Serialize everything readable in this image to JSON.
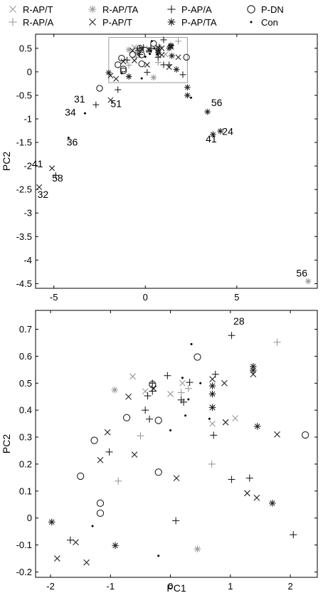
{
  "legend": [
    {
      "label": "R-AP/T",
      "marker": "x",
      "color": "#9a9a9a"
    },
    {
      "label": "R-AP/TA",
      "marker": "asterisk",
      "color": "#9a9a9a"
    },
    {
      "label": "P-AP/A",
      "marker": "plus",
      "color": "#222222"
    },
    {
      "label": "P-DN",
      "marker": "circle",
      "color": "#222222"
    },
    {
      "label": "R-AP/A",
      "marker": "plus",
      "color": "#9a9a9a"
    },
    {
      "label": "P-AP/T",
      "marker": "x",
      "color": "#222222"
    },
    {
      "label": "P-AP/TA",
      "marker": "asterisk",
      "color": "#222222"
    },
    {
      "label": "Con",
      "marker": "dot",
      "color": "#000000"
    }
  ],
  "chart_data": [
    {
      "type": "scatter",
      "xlabel": "",
      "ylabel": "PC2",
      "xlim": [
        -6,
        9.4
      ],
      "ylim": [
        -4.6,
        0.8
      ],
      "xticks": [
        "-5",
        "0",
        "5"
      ],
      "yticks": [
        "0.5",
        "0",
        "-0.5",
        "-1",
        "-1.5",
        "-2",
        "-2.5",
        "-3",
        "-3.5",
        "-4",
        "-4.5"
      ],
      "grid": false,
      "zoom_box": {
        "x": [
          -2,
          2.3
        ],
        "y": [
          -0.23,
          0.73
        ]
      },
      "series": [
        {
          "name": "R-AP/T",
          "points": [
            [
              -0.6,
              0.52
            ],
            [
              -0.4,
              0.47
            ],
            [
              0.2,
              0.5
            ],
            [
              0.7,
              0.35
            ],
            [
              0.7,
              0.4
            ],
            [
              1.1,
              0.37
            ]
          ]
        },
        {
          "name": "R-AP/TA",
          "points": [
            [
              8.9,
              -4.45
            ],
            [
              -0.9,
              0.47
            ],
            [
              0.45,
              -0.12
            ]
          ]
        },
        {
          "name": "R-AP/A",
          "points": [
            [
              1.8,
              0.65
            ],
            [
              0.7,
              0.2
            ],
            [
              -0.9,
              0.14
            ],
            [
              0.2,
              0.46
            ],
            [
              -0.5,
              0.31
            ],
            [
              0.3,
              0.48
            ]
          ]
        },
        {
          "name": "P-AP/T",
          "points": [
            [
              -5.1,
              -2.05
            ],
            [
              -5.8,
              -2.45
            ],
            [
              -1.9,
              -0.6
            ],
            [
              -1.6,
              -0.15
            ],
            [
              -1.9,
              -0.08
            ],
            [
              -1.2,
              0.22
            ],
            [
              -0.6,
              0.24
            ],
            [
              -0.7,
              0.45
            ],
            [
              0.1,
              0.15
            ],
            [
              0.9,
              0.36
            ],
            [
              1.8,
              0.31
            ],
            [
              1.4,
              0.53
            ],
            [
              1.3,
              0.1
            ],
            [
              0.9,
              0.5
            ],
            [
              0.7,
              0.52
            ],
            [
              -0.2,
              0.48
            ],
            [
              0.2,
              0.46
            ]
          ]
        },
        {
          "name": "P-AP/A",
          "points": [
            [
              -2.7,
              -0.7
            ],
            [
              -4.9,
              -2.2
            ],
            [
              -1.5,
              -0.38
            ],
            [
              1.0,
              0.68
            ],
            [
              -0.3,
              0.5
            ],
            [
              -0.1,
              0.52
            ],
            [
              -0.3,
              0.37
            ],
            [
              0.3,
              0.5
            ],
            [
              0.75,
              0.53
            ],
            [
              0.7,
              0.31
            ],
            [
              1.0,
              0.15
            ],
            [
              1.3,
              0.15
            ],
            [
              2.05,
              -0.06
            ],
            [
              -0.4,
              0.4
            ],
            [
              0.2,
              0.44
            ],
            [
              0.1,
              -0.01
            ],
            [
              -1.0,
              0.25
            ],
            [
              -0.4,
              0.45
            ]
          ]
        },
        {
          "name": "P-AP/TA",
          "points": [
            [
              3.4,
              -0.85
            ],
            [
              4.1,
              -1.26
            ],
            [
              3.7,
              -1.33
            ],
            [
              2.3,
              -0.5
            ],
            [
              2.3,
              -0.33
            ],
            [
              1.4,
              0.56
            ],
            [
              1.4,
              0.55
            ],
            [
              0.7,
              0.41
            ],
            [
              0.7,
              0.46
            ],
            [
              -0.9,
              -0.1
            ],
            [
              -2.0,
              -0.02
            ],
            [
              1.7,
              0.05
            ],
            [
              1.45,
              0.34
            ],
            [
              1.3,
              0.5
            ]
          ]
        },
        {
          "name": "P-DN",
          "points": [
            [
              -2.5,
              -0.35
            ],
            [
              -1.5,
              0.15
            ],
            [
              -1.2,
              0.06
            ],
            [
              -1.2,
              0.02
            ],
            [
              -1.3,
              0.29
            ],
            [
              -0.7,
              0.37
            ],
            [
              -0.3,
              0.5
            ],
            [
              -0.2,
              0.36
            ],
            [
              -0.2,
              0.17
            ],
            [
              0.45,
              0.6
            ],
            [
              2.25,
              0.31
            ]
          ]
        },
        {
          "name": "Con",
          "points": [
            [
              2.5,
              -0.55
            ],
            [
              -3.3,
              -0.88
            ],
            [
              -4.2,
              -1.4
            ],
            [
              -1.3,
              -0.03
            ],
            [
              -0.2,
              -0.14
            ],
            [
              0.35,
              0.65
            ],
            [
              0.25,
              0.38
            ],
            [
              0.3,
              0.44
            ],
            [
              0.5,
              0.5
            ],
            [
              0.65,
              0.37
            ],
            [
              0.0,
              0.32
            ]
          ]
        }
      ],
      "annotations": [
        {
          "text": "56",
          "x": 8.25,
          "y": -4.35
        },
        {
          "text": "56",
          "x": 3.6,
          "y": -0.73
        },
        {
          "text": "41",
          "x": 3.3,
          "y": -1.5
        },
        {
          "text": "24",
          "x": 4.2,
          "y": -1.34
        },
        {
          "text": "31",
          "x": -3.9,
          "y": -0.65
        },
        {
          "text": "51",
          "x": -1.9,
          "y": -0.75
        },
        {
          "text": "34",
          "x": -4.4,
          "y": -0.93
        },
        {
          "text": "36",
          "x": -4.3,
          "y": -1.57
        },
        {
          "text": "41",
          "x": -6.2,
          "y": -2.03
        },
        {
          "text": "58",
          "x": -5.1,
          "y": -2.33
        },
        {
          "text": "32",
          "x": -5.9,
          "y": -2.68
        }
      ]
    },
    {
      "type": "scatter",
      "xlabel": "PC1",
      "ylabel": "PC2",
      "xlim": [
        -2.25,
        2.45
      ],
      "ylim": [
        -0.22,
        0.77
      ],
      "xticks": [
        "-2",
        "-1",
        "0",
        "1",
        "2"
      ],
      "yticks": [
        "0.7",
        "0.6",
        "0.5",
        "0.4",
        "0.3",
        "0.2",
        "0.1",
        "0",
        "-0.1",
        "-0.2"
      ],
      "grid": false,
      "series": [
        {
          "name": "R-AP/T",
          "points": [
            [
              -0.63,
              0.525
            ],
            [
              -0.42,
              0.47
            ],
            [
              0.2,
              0.5
            ],
            [
              0.7,
              0.35
            ],
            [
              0.7,
              0.41
            ],
            [
              1.08,
              0.37
            ],
            [
              0.0,
              0.46
            ]
          ]
        },
        {
          "name": "R-AP/TA",
          "points": [
            [
              -0.93,
              0.475
            ],
            [
              0.45,
              -0.115
            ]
          ]
        },
        {
          "name": "R-AP/A",
          "points": [
            [
              1.78,
              0.652
            ],
            [
              0.69,
              0.2
            ],
            [
              -0.87,
              0.137
            ],
            [
              0.18,
              0.465
            ],
            [
              -0.5,
              0.305
            ],
            [
              0.3,
              0.48
            ]
          ]
        },
        {
          "name": "P-AP/T",
          "points": [
            [
              -1.17,
              0.215
            ],
            [
              -0.6,
              0.235
            ],
            [
              -0.7,
              0.45
            ],
            [
              0.1,
              0.148
            ],
            [
              0.92,
              0.355
            ],
            [
              1.78,
              0.31
            ],
            [
              1.38,
              0.533
            ],
            [
              1.28,
              0.092
            ],
            [
              0.9,
              0.5
            ],
            [
              0.7,
              0.515
            ],
            [
              -0.28,
              0.48
            ],
            [
              -1.89,
              -0.15
            ],
            [
              -1.58,
              -0.09
            ],
            [
              -1.4,
              -0.165
            ],
            [
              -1.05,
              0.318
            ],
            [
              1.44,
              0.075
            ]
          ]
        },
        {
          "name": "P-AP/A",
          "points": [
            [
              1.02,
              0.677
            ],
            [
              -0.3,
              0.5
            ],
            [
              -0.05,
              0.528
            ],
            [
              -0.35,
              0.367
            ],
            [
              0.32,
              0.503
            ],
            [
              0.75,
              0.533
            ],
            [
              0.72,
              0.307
            ],
            [
              1.02,
              0.143
            ],
            [
              1.32,
              0.148
            ],
            [
              2.05,
              -0.062
            ],
            [
              -0.42,
              0.4
            ],
            [
              0.18,
              0.438
            ],
            [
              0.09,
              -0.01
            ],
            [
              -1.02,
              0.245
            ],
            [
              -0.38,
              0.453
            ],
            [
              -1.67,
              -0.082
            ],
            [
              -0.3,
              0.47
            ],
            [
              0.22,
              0.43
            ]
          ]
        },
        {
          "name": "P-AP/TA",
          "points": [
            [
              1.38,
              0.562
            ],
            [
              1.38,
              0.548
            ],
            [
              0.7,
              0.41
            ],
            [
              0.7,
              0.46
            ],
            [
              -0.92,
              -0.102
            ],
            [
              -1.98,
              -0.015
            ],
            [
              1.7,
              0.055
            ],
            [
              1.45,
              0.34
            ],
            [
              0.7,
              0.49
            ]
          ]
        },
        {
          "name": "P-DN",
          "points": [
            [
              -1.5,
              0.155
            ],
            [
              -1.17,
              0.055
            ],
            [
              -1.17,
              0.018
            ],
            [
              -1.27,
              0.288
            ],
            [
              -0.73,
              0.372
            ],
            [
              -0.3,
              0.495
            ],
            [
              -0.2,
              0.362
            ],
            [
              -0.2,
              0.17
            ],
            [
              0.45,
              0.597
            ],
            [
              2.25,
              0.308
            ]
          ]
        },
        {
          "name": "Con",
          "points": [
            [
              0.35,
              0.645
            ],
            [
              -1.3,
              -0.03
            ],
            [
              -0.2,
              -0.14
            ],
            [
              0.25,
              0.38
            ],
            [
              0.3,
              0.44
            ],
            [
              0.5,
              0.5
            ],
            [
              0.65,
              0.368
            ],
            [
              0.0,
              0.325
            ],
            [
              0.2,
              0.52
            ]
          ]
        }
      ],
      "annotations": [
        {
          "text": "28",
          "x": 1.05,
          "y": 0.717
        }
      ]
    }
  ]
}
